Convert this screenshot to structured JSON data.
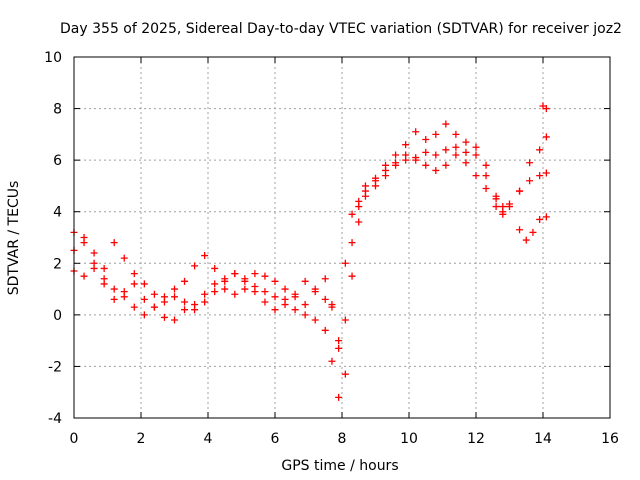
{
  "chart_data": {
    "type": "scatter",
    "title": "Day 355 of 2025, Sidereal Day-to-day VTEC variation (SDTVAR) for receiver joz2",
    "xlabel": "GPS time / hours",
    "ylabel": "SDTVAR / TECUs",
    "xlim": [
      0,
      16
    ],
    "ylim": [
      -4,
      10
    ],
    "xticks": [
      "0",
      "2",
      "4",
      "6",
      "8",
      "10",
      "12",
      "14",
      "16"
    ],
    "yticks": [
      "-4",
      "-2",
      "0",
      "2",
      "4",
      "6",
      "8",
      "10"
    ],
    "grid": true,
    "marker": "plus",
    "marker_color": "#ff0000",
    "series": [
      {
        "x": [
          0.0,
          0.3,
          0.6,
          0.9,
          1.2,
          1.5,
          1.8,
          2.1,
          2.4,
          2.7,
          3.0,
          3.3,
          3.6,
          3.9,
          4.2,
          4.5,
          4.8,
          5.1,
          5.4,
          5.7,
          6.0,
          6.3,
          6.6,
          6.9,
          7.2,
          7.5,
          7.7,
          7.9,
          8.1,
          8.3,
          8.5,
          8.7,
          9.0,
          9.3,
          9.6,
          9.9,
          10.2,
          10.5,
          10.8,
          11.1,
          11.4,
          11.7,
          12.0,
          12.3,
          12.6,
          12.8,
          13.0,
          13.3,
          13.6,
          13.9,
          14.1
        ],
        "y": [
          3.2,
          3.0,
          2.4,
          1.8,
          2.8,
          2.2,
          1.2,
          0.6,
          0.3,
          -0.1,
          -0.2,
          0.2,
          0.4,
          0.8,
          1.2,
          1.0,
          0.8,
          1.0,
          1.1,
          0.9,
          0.7,
          0.6,
          0.2,
          0.0,
          -0.2,
          -0.6,
          -1.8,
          -3.2,
          -0.2,
          2.8,
          4.2,
          4.8,
          5.2,
          5.6,
          5.8,
          6.0,
          6.1,
          6.3,
          6.2,
          6.4,
          6.5,
          6.3,
          6.2,
          5.8,
          4.6,
          4.0,
          4.3,
          4.8,
          5.9,
          6.4,
          6.9
        ]
      },
      {
        "x": [
          0.0,
          0.3,
          0.6,
          0.9,
          1.2,
          1.5,
          1.8,
          2.1,
          2.4,
          2.7,
          3.0,
          3.3,
          3.6,
          3.9,
          4.2,
          4.5,
          4.8,
          5.1,
          5.4,
          5.7,
          6.0,
          6.3,
          6.6,
          6.9,
          7.2,
          7.5,
          7.7,
          7.9,
          8.1,
          8.3,
          8.5,
          8.7,
          9.0,
          9.3,
          9.6,
          9.9,
          10.2,
          10.5,
          10.8,
          11.1,
          11.4,
          11.7,
          12.0,
          12.3,
          12.6,
          12.8,
          13.0,
          13.3,
          13.6,
          13.9,
          14.1
        ],
        "y": [
          2.5,
          2.8,
          2.0,
          1.2,
          0.6,
          0.9,
          1.6,
          1.2,
          0.8,
          0.5,
          0.7,
          1.3,
          1.9,
          2.3,
          1.8,
          1.4,
          1.6,
          1.3,
          0.9,
          0.5,
          0.2,
          0.4,
          0.8,
          1.3,
          1.0,
          0.6,
          0.4,
          -1.0,
          -2.3,
          1.5,
          3.6,
          4.6,
          5.0,
          5.4,
          5.9,
          6.2,
          6.0,
          5.8,
          5.6,
          5.8,
          6.2,
          5.9,
          5.4,
          4.9,
          4.2,
          3.9,
          4.2,
          4.8,
          5.2,
          5.4,
          5.5
        ]
      },
      {
        "x": [
          0.0,
          0.3,
          0.6,
          0.9,
          1.2,
          1.5,
          1.8,
          2.1,
          2.4,
          2.7,
          3.0,
          3.3,
          3.6,
          3.9,
          4.2,
          4.5,
          4.8,
          5.1,
          5.4,
          5.7,
          6.0,
          6.3,
          6.6,
          6.9,
          7.2,
          7.5,
          7.7,
          7.9,
          8.1,
          8.3,
          8.5,
          8.7,
          9.0,
          9.3,
          9.6,
          9.9,
          10.2,
          10.5,
          10.8,
          11.1,
          11.4,
          11.7,
          12.0,
          12.3,
          12.6,
          12.8
        ],
        "y": [
          1.7,
          1.5,
          1.8,
          1.4,
          1.0,
          0.7,
          0.3,
          0.0,
          0.3,
          0.7,
          1.0,
          0.5,
          0.2,
          0.5,
          0.9,
          1.3,
          1.6,
          1.4,
          1.6,
          1.5,
          1.3,
          1.0,
          0.7,
          0.4,
          0.9,
          1.4,
          0.3,
          -1.3,
          2.0,
          3.9,
          4.4,
          5.0,
          5.3,
          5.8,
          6.2,
          6.6,
          7.1,
          6.8,
          7.0,
          7.4,
          7.0,
          6.7,
          6.5,
          5.4,
          4.5,
          4.2
        ]
      },
      {
        "x": [
          13.3,
          13.5,
          13.7,
          13.9,
          14.1
        ],
        "y": [
          3.3,
          2.9,
          3.2,
          3.7,
          3.8
        ]
      },
      {
        "x": [
          14.0,
          14.1
        ],
        "y": [
          8.1,
          8.0
        ]
      }
    ]
  }
}
